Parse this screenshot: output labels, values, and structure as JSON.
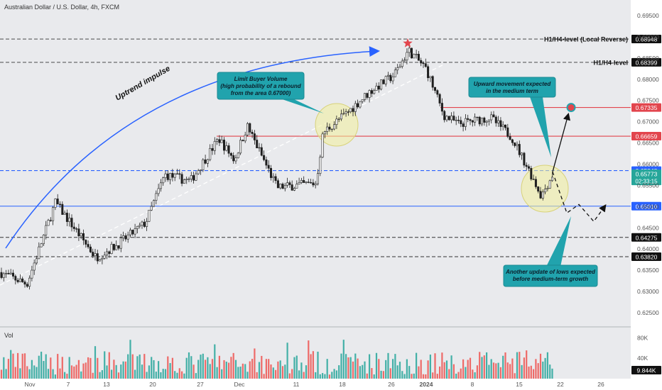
{
  "header": {
    "title": "Australian Dollar / U.S. Dollar, 4h, FXCM"
  },
  "colors": {
    "background": "#e9eaed",
    "up": "#1f1f1f",
    "down": "#1f1f1f",
    "level_red": "#e2454d",
    "level_blue": "#2962ff",
    "callout_bg": "#21a3ad",
    "highlight": "#f3ef9b",
    "vol_up": "#26a69a",
    "vol_down": "#ef5350"
  },
  "chart_data": {
    "type": "candlestick",
    "price_axis": {
      "ylim": [
        0.6215,
        0.6985
      ],
      "ticks": [
        "0.69500",
        "0.69000",
        "0.68500",
        "0.68000",
        "0.67500",
        "0.67000",
        "0.66500",
        "0.66000",
        "0.65500",
        "0.65000",
        "0.64500",
        "0.64000",
        "0.63500",
        "0.63000",
        "0.62500"
      ]
    },
    "time_axis": {
      "ticks": [
        "Nov",
        "7",
        "13",
        "20",
        "27",
        "Dec",
        "11",
        "18",
        "26",
        "2024",
        "8",
        "15",
        "22",
        "26"
      ]
    },
    "levels": [
      {
        "value": 0.68948,
        "label": "0.68948",
        "color": "#333333",
        "dash": true,
        "bold": false,
        "name": "H1/H4-level (Local Reverse)"
      },
      {
        "value": 0.68399,
        "label": "0.68399",
        "color": "#333333",
        "dash": true,
        "bold": false,
        "name": "H1/H4-level"
      },
      {
        "value": 0.67335,
        "label": "0.67335",
        "color": "#e2454d",
        "dash": false,
        "bold": true,
        "name": ""
      },
      {
        "value": 0.66659,
        "label": "0.66659",
        "color": "#e2454d",
        "dash": false,
        "bold": true,
        "name": ""
      },
      {
        "value": 0.65848,
        "label": "0.65848",
        "color": "#2962ff",
        "dash": true,
        "bold": true,
        "name": ""
      },
      {
        "value": 0.6501,
        "label": "0.65010",
        "color": "#2962ff",
        "dash": false,
        "bold": true,
        "name": ""
      },
      {
        "value": 0.64275,
        "label": "0.64275",
        "color": "#333333",
        "dash": true,
        "bold": false,
        "name": ""
      },
      {
        "value": 0.6382,
        "label": "0.63820",
        "color": "#333333",
        "dash": true,
        "bold": false,
        "name": ""
      }
    ],
    "current_price": {
      "value": 0.65773,
      "label": "0.65773",
      "timer": "02:33:15",
      "color": "#26a69a"
    },
    "anchors": [
      {
        "t": 0,
        "p": 0.6345
      },
      {
        "t": 38,
        "p": 0.6318
      },
      {
        "t": 78,
        "p": 0.651
      },
      {
        "t": 135,
        "p": 0.638
      },
      {
        "t": 165,
        "p": 0.641
      },
      {
        "t": 205,
        "p": 0.6462
      },
      {
        "t": 232,
        "p": 0.6575
      },
      {
        "t": 268,
        "p": 0.656
      },
      {
        "t": 308,
        "p": 0.666
      },
      {
        "t": 330,
        "p": 0.661
      },
      {
        "t": 348,
        "p": 0.669
      },
      {
        "t": 390,
        "p": 0.6545
      },
      {
        "t": 445,
        "p": 0.6555
      },
      {
        "t": 455,
        "p": 0.6675
      },
      {
        "t": 488,
        "p": 0.672
      },
      {
        "t": 520,
        "p": 0.677
      },
      {
        "t": 555,
        "p": 0.681
      },
      {
        "t": 575,
        "p": 0.6868
      },
      {
        "t": 600,
        "p": 0.6825
      },
      {
        "t": 625,
        "p": 0.6715
      },
      {
        "t": 645,
        "p": 0.6695
      },
      {
        "t": 690,
        "p": 0.671
      },
      {
        "t": 720,
        "p": 0.6665
      },
      {
        "t": 745,
        "p": 0.6585
      },
      {
        "t": 762,
        "p": 0.6525
      },
      {
        "t": 780,
        "p": 0.6582
      }
    ],
    "volume": {
      "axis_label": "Vol",
      "ticks": [
        "80K",
        "40K"
      ],
      "tick_values": [
        80,
        40
      ],
      "ylim": [
        0,
        100
      ],
      "last": "9.844K"
    },
    "projection": {
      "up_path": [
        {
          "t": 778,
          "p": 0.6582
        },
        {
          "t": 800,
          "p": 0.6717
        }
      ],
      "target": {
        "t": 804,
        "p": 0.67335
      },
      "down_path": [
        {
          "t": 778,
          "p": 0.6582
        },
        {
          "t": 798,
          "p": 0.6485
        },
        {
          "t": 815,
          "p": 0.6505
        },
        {
          "t": 836,
          "p": 0.6465
        },
        {
          "t": 852,
          "p": 0.6502
        }
      ]
    },
    "trendline": [
      {
        "t": 0,
        "p": 0.6315
      },
      {
        "t": 625,
        "p": 0.6835
      }
    ],
    "annotations": {
      "impulse_label": "Uptrend impulse",
      "callout_left": "Limit Buyer Volume\n(high probability of a rebound\nfrom the area 0.67000)",
      "callout_right_top": "Upward movement expected\nin the medium term",
      "callout_right_bottom": "Another update of lows expected\nbefore medium-term growth"
    }
  }
}
